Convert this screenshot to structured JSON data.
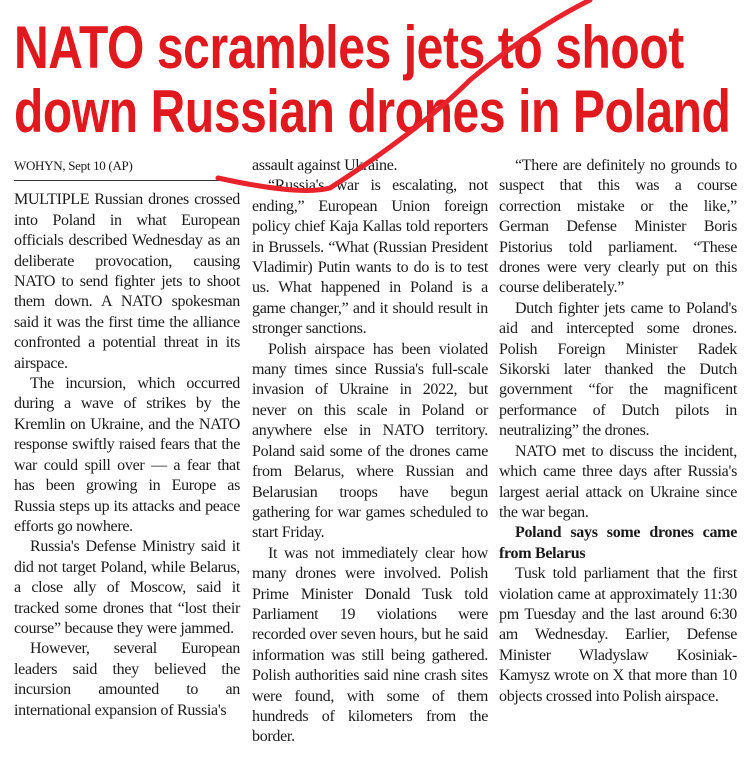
{
  "headline": [
    "NATO scrambles jets to shoot",
    "down Russian drones in Poland"
  ],
  "dateline": "WOHYN, Sept 10 (AP)",
  "columns": [
    {
      "paragraphs": [
        "MULTIPLE Russian drones crossed into Poland in what European officials described Wednesday as an deliberate provocation, causing NATO to send fighter jets to shoot them down. A NATO spokesman said it was the first time the alliance confronted a potential threat in its airspace.",
        "The incursion, which occurred during a wave of strikes by the Kremlin on Ukraine, and the NATO response swiftly raised fears that the war could spill over — a fear that has been growing in Europe as Russia steps up its attacks and peace efforts go nowhere.",
        "Russia's Defense Ministry said it did not target Poland, while Belarus, a close ally of Moscow, said it tracked some drones that “lost their course” because they were jammed.",
        "However, several European leaders said they believed the incursion amounted to an international expansion of Russia's"
      ]
    },
    {
      "paragraphs": [
        "assault against Ukraine.",
        "“Russia's war is escalating, not ending,” European Union foreign policy chief Kaja Kallas told reporters in Brussels. “What (Russian President Vladimir) Putin wants to do is to test us. What happened in Poland is a game changer,” and it should result in stronger sanctions.",
        "Polish airspace has been violated many times since Russia's full-scale invasion of Ukraine in 2022, but never on this scale in Poland or anywhere else in NATO territory. Poland said some of the drones came from Belarus, where Russian and Belarusian troops have begun gathering for war games scheduled to start Friday.",
        "It was not immediately clear how many drones were involved. Polish Prime Minister Donald Tusk told Parliament 19 violations were recorded over seven hours, but he said information was still being gathered. Polish authorities said nine crash sites were found, with some of them hundreds of kilometers from the border."
      ]
    },
    {
      "paragraphs": [
        "“There are definitely no grounds to suspect that this was a course correction mistake or the like,” German Defense Minister Boris Pistorius told parliament. “These drones were very clearly put on this course deliberately.”",
        "Dutch fighter jets came to Poland's aid and intercepted some drones. Polish Foreign Minister Radek Sikorski later thanked the Dutch government “for the magnificent performance of Dutch pilots in neutralizing” the drones.",
        "NATO met to discuss the incident, which came three days after Russia's largest aerial attack on Ukraine since the war began."
      ],
      "subhead": "Poland says some drones came from Belarus",
      "after_subhead": [
        "Tusk told parliament that the first violation came at approximately 11:30 pm Tuesday and the last around 6:30 am Wednesday. Earlier, Defense Minister Wladyslaw Kosiniak-Kamysz wrote on X that more than 10 objects crossed into Polish airspace."
      ]
    }
  ]
}
